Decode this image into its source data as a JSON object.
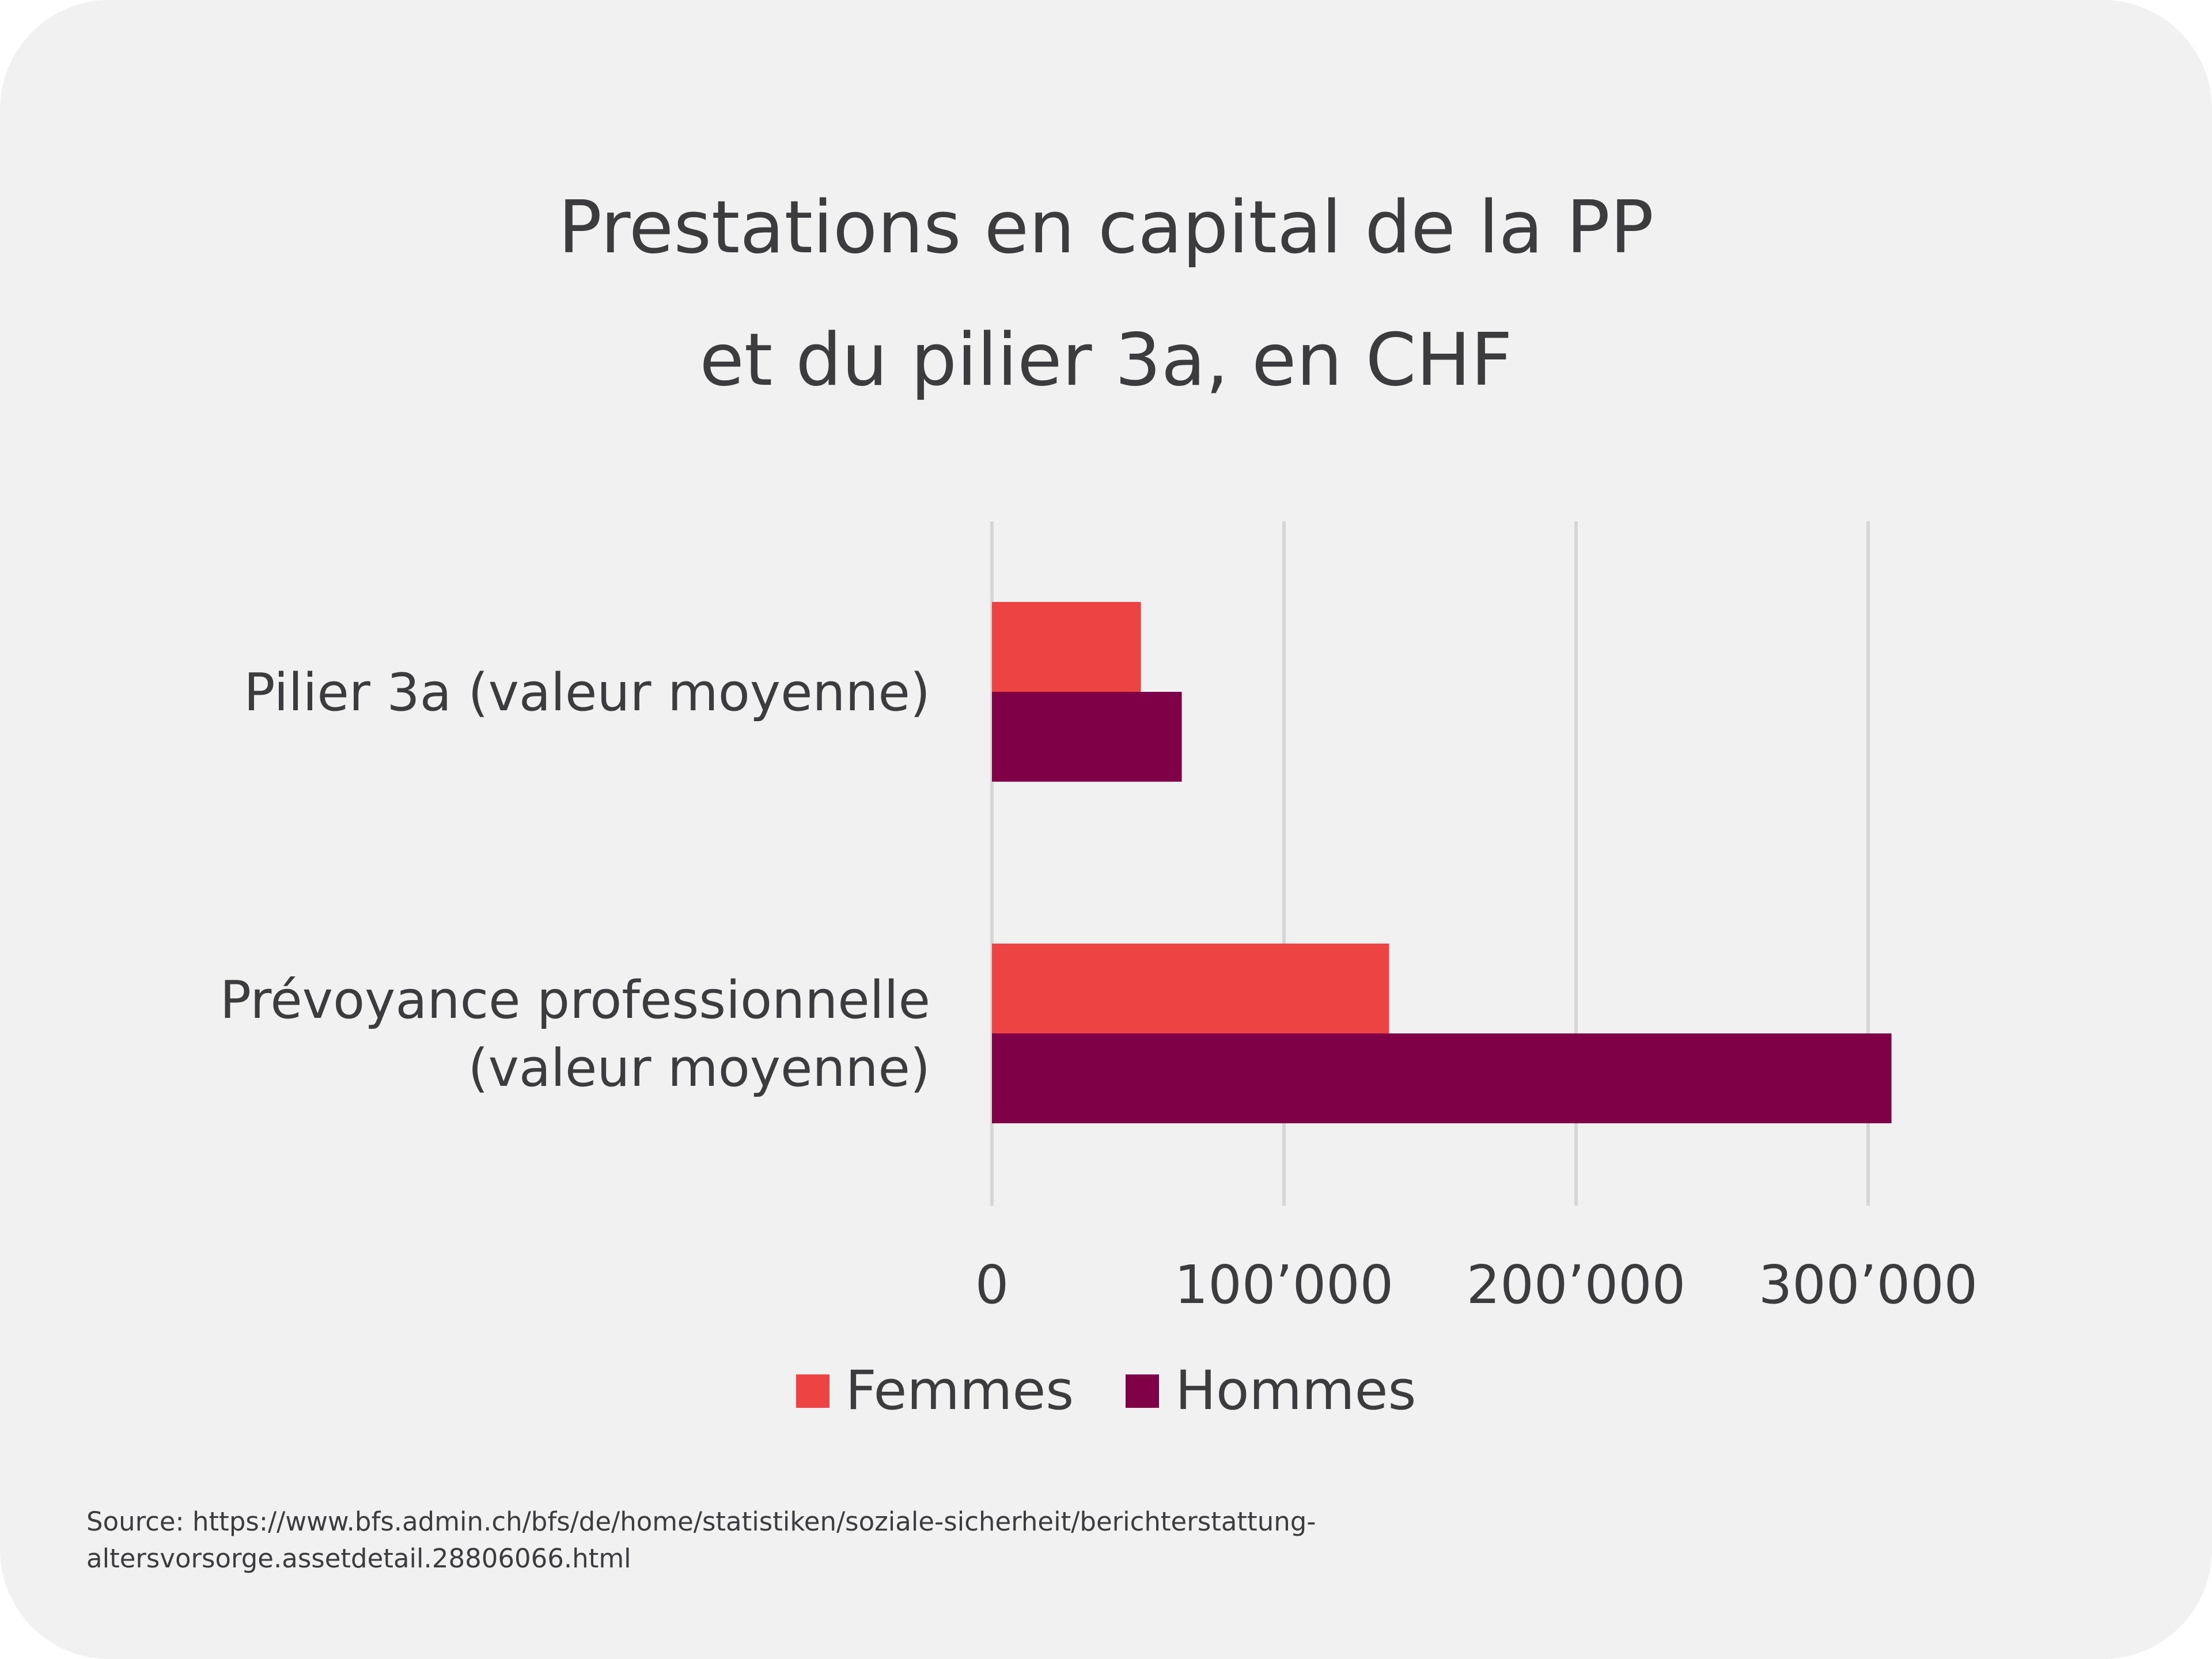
{
  "chart_data": {
    "type": "bar",
    "orientation": "horizontal",
    "title_lines": [
      "Prestations en capital de la PP",
      "et du pilier 3a, en CHF"
    ],
    "categories": [
      [
        "Pilier 3a (valeur moyenne)"
      ],
      [
        "Prévoyance professionnelle",
        "(valeur moyenne)"
      ]
    ],
    "series": [
      {
        "name": "Femmes",
        "color": "#ee4343",
        "values": [
          51000,
          136000
        ]
      },
      {
        "name": "Hommes",
        "color": "#800047",
        "values": [
          65000,
          308000
        ]
      }
    ],
    "xlim": [
      0,
      300000
    ],
    "xticks": [
      0,
      100000,
      200000,
      300000
    ],
    "xtick_labels": [
      "0",
      "100’000",
      "200’000",
      "300’000"
    ],
    "grid": true,
    "legend_position": "bottom"
  },
  "source": {
    "lines": [
      "Source: https://www.bfs.admin.ch/bfs/de/home/statistiken/soziale-sicherheit/berichterstattung-",
      "altersvorsorge.assetdetail.28806066.html"
    ]
  }
}
